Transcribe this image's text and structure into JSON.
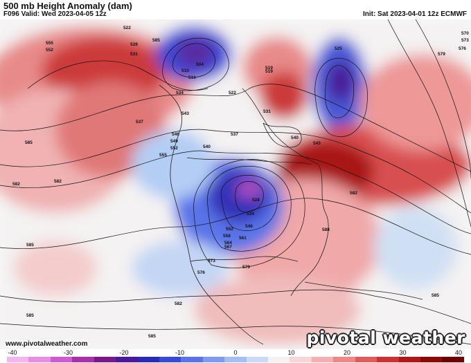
{
  "header": {
    "title": "500 mb Height Anomaly (dam)",
    "valid": "F096 Valid: Wed 2023-04-05 12z",
    "init": "Init: Sat 2023-04-01 12z ECMWF"
  },
  "footer": {
    "website": "www.pivotalweather.com",
    "brand": "pivotal weather"
  },
  "colorbar": {
    "ticks": [
      "-40",
      "-30",
      "-20",
      "-10",
      "0",
      "10",
      "20",
      "30",
      "40"
    ],
    "colors": [
      "#f2b6f0",
      "#e58ee6",
      "#cc5ccf",
      "#a830a8",
      "#7a1a8a",
      "#4a1a9a",
      "#2a2ab8",
      "#3a4ad8",
      "#5a74e8",
      "#7c9cf0",
      "#a4bef4",
      "#cadaf6",
      "#f2f2f2",
      "#f6d6d6",
      "#f4b0b0",
      "#ee8888",
      "#e05c5c",
      "#cc3232",
      "#b01818",
      "#8a0a0a",
      "#6a0404"
    ]
  },
  "contour_labels": [
    {
      "text": "522"
    },
    {
      "text": "528"
    },
    {
      "text": "531"
    },
    {
      "text": "555"
    },
    {
      "text": "552"
    },
    {
      "text": "504"
    },
    {
      "text": "510"
    },
    {
      "text": "516"
    },
    {
      "text": "519"
    },
    {
      "text": "525"
    },
    {
      "text": "570"
    },
    {
      "text": "573"
    },
    {
      "text": "576"
    },
    {
      "text": "579"
    },
    {
      "text": "534"
    },
    {
      "text": "537"
    },
    {
      "text": "543"
    },
    {
      "text": "546"
    },
    {
      "text": "549"
    },
    {
      "text": "552"
    },
    {
      "text": "555"
    },
    {
      "text": "540"
    },
    {
      "text": "585"
    },
    {
      "text": "582"
    },
    {
      "text": "528"
    },
    {
      "text": "534"
    },
    {
      "text": "546"
    },
    {
      "text": "552"
    },
    {
      "text": "558"
    },
    {
      "text": "564"
    },
    {
      "text": "567"
    },
    {
      "text": "573"
    },
    {
      "text": "576"
    },
    {
      "text": "579"
    },
    {
      "text": "582"
    },
    {
      "text": "588"
    },
    {
      "text": "585"
    },
    {
      "text": "585"
    },
    {
      "text": "585"
    },
    {
      "text": "582"
    },
    {
      "text": "585"
    },
    {
      "text": "582"
    },
    {
      "text": "585"
    },
    {
      "text": "519"
    },
    {
      "text": "522"
    },
    {
      "text": "531"
    },
    {
      "text": "537"
    },
    {
      "text": "540"
    },
    {
      "text": "543"
    },
    {
      "text": "561"
    }
  ]
}
